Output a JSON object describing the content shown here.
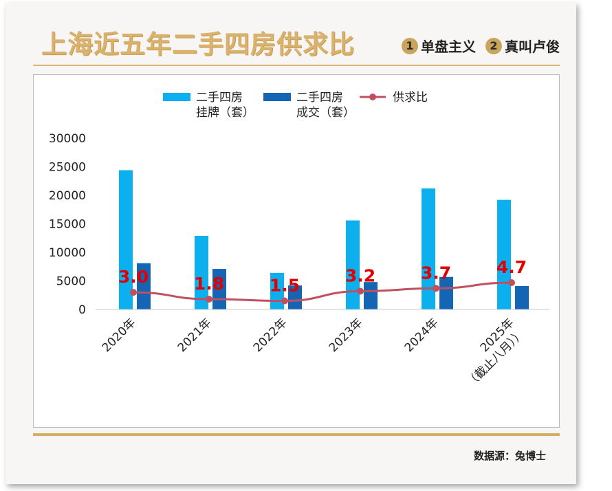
{
  "header": {
    "title": "上海近五年二手四房供求比",
    "brands": [
      {
        "num": "1",
        "name": "单盘主义"
      },
      {
        "num": "2",
        "name": "真叫卢俊"
      }
    ]
  },
  "footer": {
    "source": "数据源：兔博士"
  },
  "colors": {
    "listing": "#0cb0ef",
    "deal": "#1565b5",
    "ratio_line": "#c05060",
    "ratio_label": "#e00000"
  },
  "chart_data": {
    "type": "bar",
    "categories": [
      "2020年",
      "2021年",
      "2022年",
      "2023年",
      "2024年",
      "2025年\n（截止八月））"
    ],
    "series": [
      {
        "name": "二手四房\n挂牌（套）",
        "type": "bar",
        "values": [
          24400,
          12900,
          6400,
          15600,
          21200,
          19200
        ]
      },
      {
        "name": "二手四房\n成交（套）",
        "type": "bar",
        "values": [
          8100,
          7100,
          4200,
          4800,
          5700,
          4100
        ]
      },
      {
        "name": "供求比",
        "type": "line",
        "values": [
          3.0,
          1.8,
          1.5,
          3.2,
          3.7,
          4.7
        ],
        "labels": [
          "3.0",
          "1.8",
          "1.5",
          "3.2",
          "3.7",
          "4.7"
        ]
      }
    ],
    "yticks": [
      "30000",
      "25000",
      "20000",
      "15000",
      "10000",
      "5000",
      "0"
    ],
    "ylim": [
      0,
      30000
    ],
    "legend_position": "top",
    "grid": false
  }
}
